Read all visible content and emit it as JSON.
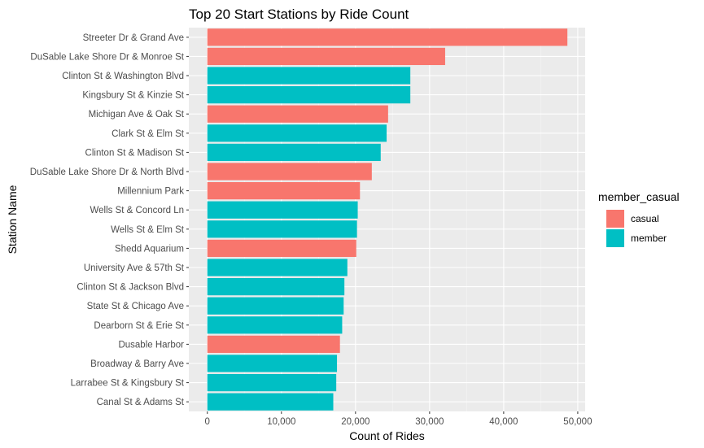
{
  "chart_data": {
    "type": "bar",
    "orientation": "horizontal",
    "title": "Top 20 Start Stations by Ride Count",
    "xlabel": "Count of Rides",
    "ylabel": "Station Name",
    "xlim": [
      -2500,
      51000
    ],
    "x_ticks": [
      0,
      10000,
      20000,
      30000,
      40000,
      50000
    ],
    "x_tick_labels": [
      "0",
      "10,000",
      "20,000",
      "30,000",
      "40,000",
      "50,000"
    ],
    "grid": true,
    "legend": {
      "title": "member_casual",
      "placement": "right",
      "entries": [
        {
          "name": "casual",
          "color": "#F8766D"
        },
        {
          "name": "member",
          "color": "#00BFC4"
        }
      ]
    },
    "categories": [
      "Streeter Dr & Grand Ave",
      "DuSable Lake Shore Dr & Monroe St",
      "Clinton St & Washington Blvd",
      "Kingsbury St & Kinzie St",
      "Michigan Ave & Oak St",
      "Clark St & Elm St",
      "Clinton St & Madison St",
      "DuSable Lake Shore Dr & North Blvd",
      "Millennium Park",
      "Wells St & Concord Ln",
      "Wells St & Elm St",
      "Shedd Aquarium",
      "University Ave & 57th St",
      "Clinton St & Jackson Blvd",
      "State St & Chicago Ave",
      "Dearborn St & Erie St",
      "Dusable Harbor",
      "Broadway & Barry Ave",
      "Larrabee St & Kingsbury St",
      "Canal St & Adams St"
    ],
    "values": [
      48600,
      32100,
      27400,
      27400,
      24400,
      24200,
      23400,
      22200,
      20600,
      20300,
      20200,
      20100,
      18900,
      18500,
      18400,
      18200,
      17900,
      17500,
      17400,
      17000
    ],
    "groups": [
      "casual",
      "casual",
      "member",
      "member",
      "casual",
      "member",
      "member",
      "casual",
      "casual",
      "member",
      "member",
      "casual",
      "member",
      "member",
      "member",
      "member",
      "casual",
      "member",
      "member",
      "member"
    ]
  },
  "colors": {
    "panel_background": "#EBEBEB",
    "grid_major": "#FFFFFF",
    "grid_minor": "#F5F5F5",
    "tick_text": "#4D4D4D"
  }
}
